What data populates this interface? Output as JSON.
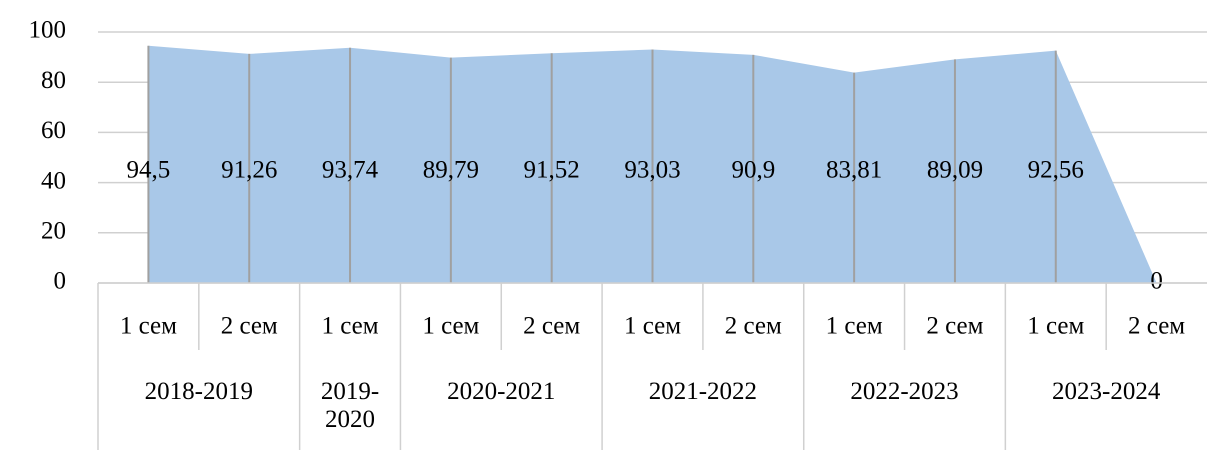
{
  "chart_data": {
    "type": "area",
    "groups": [
      {
        "label": "2018-2019",
        "categories": [
          "1 сем",
          "2 сем"
        ]
      },
      {
        "label": "2019-2020",
        "categories": [
          "1 сем"
        ]
      },
      {
        "label": "2020-2021",
        "categories": [
          "1 сем",
          "2 сем"
        ]
      },
      {
        "label": "2021-2022",
        "categories": [
          "1 сем",
          "2 сем"
        ]
      },
      {
        "label": "2022-2023",
        "categories": [
          "1 сем",
          "2 сем"
        ]
      },
      {
        "label": "2023-2024",
        "categories": [
          "1 сем",
          "2 сем"
        ]
      }
    ],
    "values": [
      94.5,
      91.26,
      93.74,
      89.79,
      91.52,
      93.03,
      90.9,
      83.81,
      89.09,
      92.56,
      0
    ],
    "value_labels": [
      "94,5",
      "91,26",
      "93,74",
      "89,79",
      "91,52",
      "93,03",
      "90,9",
      "83,81",
      "89,09",
      "92,56",
      "0"
    ],
    "color": "#a9c8e8",
    "ylim": [
      0,
      100
    ],
    "yticks": [
      0,
      20,
      40,
      60,
      80,
      100
    ],
    "grid": true
  }
}
